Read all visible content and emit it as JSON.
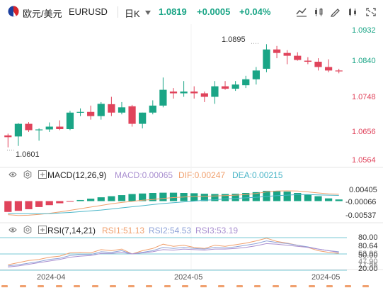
{
  "header": {
    "title": "欧元/美元",
    "symbol": "EURUSD",
    "period": "日K",
    "price": "1.0819",
    "change": "+0.0005",
    "change_pct": "+0.04%",
    "icons": [
      "line-chart-icon",
      "candle-style-icon",
      "pencil-icon",
      "compare-icon",
      "fullscreen-icon"
    ]
  },
  "main_axis": [
    "1.0932",
    "1.0840",
    "1.0748",
    "1.0656",
    "1.0564"
  ],
  "main_axis_colors": [
    "#1aa586",
    "#1aa586",
    "#e0435b",
    "#e0435b",
    "#e0435b"
  ],
  "high_label": "1.0895",
  "low_label": "1.0601",
  "macd": {
    "name": "MACD(12,26,9)",
    "macd_label": "MACD:0.00065",
    "dif_label": "DIF:0.00247",
    "dea_label": "DEA:0.00215",
    "axis": [
      "0.00405",
      "-0.00066",
      "-0.00537"
    ]
  },
  "rsi": {
    "name": "RSI(7,14,21)",
    "rsi1_label": "RSI1:51.13",
    "rsi2_label": "RSI2:54.53",
    "rsi3_label": "RSI3:53.19",
    "axis": [
      "80.00",
      "80.64",
      "53.96",
      "50.00",
      "47.90",
      "20.00",
      "17.96"
    ]
  },
  "x_axis": [
    "2024-04",
    "2024-05",
    "2024-05"
  ],
  "colors": {
    "up": "#1aa586",
    "down": "#e0435b",
    "macd_line": "#f0a06e",
    "dea_line": "#4cb6c8",
    "rsi1": "#f0a06e",
    "rsi2": "#8fa3d8",
    "rsi3": "#a98fd0"
  },
  "chart_data": {
    "type": "candlestick",
    "candles": [
      [
        1.0635,
        1.064,
        1.0601,
        1.063
      ],
      [
        1.0632,
        1.067,
        1.0605,
        1.0668
      ],
      [
        1.0668,
        1.0673,
        1.0645,
        1.065
      ],
      [
        1.065,
        1.0655,
        1.062,
        1.0652
      ],
      [
        1.0652,
        1.0672,
        1.0645,
        1.066
      ],
      [
        1.066,
        1.0678,
        1.065,
        1.0653
      ],
      [
        1.0653,
        1.0705,
        1.065,
        1.07
      ],
      [
        1.07,
        1.0712,
        1.069,
        1.0702
      ],
      [
        1.0702,
        1.072,
        1.068,
        1.069
      ],
      [
        1.069,
        1.073,
        1.068,
        1.0725
      ],
      [
        1.0724,
        1.0745,
        1.069,
        1.07
      ],
      [
        1.07,
        1.073,
        1.0695,
        1.0715
      ],
      [
        1.0718,
        1.0722,
        1.066,
        1.0668
      ],
      [
        1.0668,
        1.07,
        1.0655,
        1.07
      ],
      [
        1.07,
        1.0735,
        1.0695,
        1.072
      ],
      [
        1.072,
        1.08,
        1.0715,
        1.0765
      ],
      [
        1.076,
        1.077,
        1.074,
        1.0755
      ],
      [
        1.0755,
        1.079,
        1.0745,
        1.076
      ],
      [
        1.076,
        1.0775,
        1.074,
        1.0755
      ],
      [
        1.0755,
        1.076,
        1.073,
        1.0745
      ],
      [
        1.0745,
        1.079,
        1.0725,
        1.0775
      ],
      [
        1.0775,
        1.079,
        1.0765,
        1.0768
      ],
      [
        1.0768,
        1.079,
        1.0762,
        1.078
      ],
      [
        1.0778,
        1.0805,
        1.077,
        1.0795
      ],
      [
        1.0795,
        1.083,
        1.078,
        1.082
      ],
      [
        1.0825,
        1.0895,
        1.0815,
        1.088
      ],
      [
        1.088,
        1.089,
        1.0855,
        1.087
      ],
      [
        1.087,
        1.0878,
        1.0838,
        1.0862
      ],
      [
        1.0862,
        1.0872,
        1.0848,
        1.085
      ],
      [
        1.0848,
        1.0858,
        1.0838,
        1.0845
      ],
      [
        1.0845,
        1.0855,
        1.082,
        1.083
      ],
      [
        1.083,
        1.0852,
        1.0815,
        1.082
      ],
      [
        1.082,
        1.0825,
        1.0812,
        1.0819
      ]
    ],
    "macd_hist": [
      -0.004,
      -0.0036,
      -0.003,
      -0.0022,
      -0.0015,
      -0.0008,
      -0.0002,
      0.0004,
      0.0009,
      0.0014,
      0.0018,
      0.0022,
      0.0026,
      0.0028,
      0.003,
      0.0031,
      0.0031,
      0.003,
      0.0029,
      0.0027,
      0.0026,
      0.0026,
      0.0027,
      0.003,
      0.0033,
      0.0038,
      0.0038,
      0.0035,
      0.003,
      0.0024,
      0.0018,
      0.001,
      0.0006
    ],
    "dif": [
      -0.005,
      -0.0053,
      -0.0052,
      -0.0049,
      -0.0045,
      -0.004,
      -0.0034,
      -0.0028,
      -0.0022,
      -0.0016,
      -0.001,
      -0.0005,
      -0.0001,
      0.0003,
      0.0006,
      0.001,
      0.0013,
      0.0015,
      0.0017,
      0.0018,
      0.0019,
      0.002,
      0.0022,
      0.0024,
      0.0028,
      0.0034,
      0.0037,
      0.0038,
      0.0037,
      0.0034,
      0.003,
      0.0027,
      0.0025
    ],
    "dea": [
      -0.0045,
      -0.0046,
      -0.0047,
      -0.0047,
      -0.0046,
      -0.0044,
      -0.0042,
      -0.0039,
      -0.0036,
      -0.0033,
      -0.0029,
      -0.0025,
      -0.0021,
      -0.0017,
      -0.0013,
      -0.0009,
      -0.0006,
      -0.0003,
      0.0,
      0.0003,
      0.0005,
      0.0008,
      0.001,
      0.0012,
      0.0014,
      0.0017,
      0.002,
      0.0022,
      0.0024,
      0.0024,
      0.0023,
      0.0022,
      0.0021
    ],
    "rsi1": [
      30,
      34,
      38,
      40,
      44,
      46,
      52,
      53,
      52,
      58,
      56,
      59,
      50,
      56,
      60,
      68,
      64,
      66,
      62,
      60,
      66,
      64,
      67,
      70,
      74,
      79,
      73,
      70,
      66,
      62,
      56,
      53,
      51
    ],
    "rsi2": [
      28,
      30,
      33,
      36,
      40,
      42,
      47,
      49,
      49,
      54,
      53,
      56,
      50,
      53,
      56,
      62,
      60,
      62,
      60,
      59,
      62,
      61,
      63,
      66,
      69,
      74,
      71,
      69,
      66,
      63,
      59,
      56,
      54
    ],
    "rsi3": [
      26,
      28,
      31,
      34,
      37,
      40,
      44,
      46,
      47,
      51,
      51,
      53,
      50,
      52,
      54,
      58,
      57,
      59,
      58,
      57,
      59,
      59,
      60,
      62,
      65,
      69,
      68,
      66,
      64,
      62,
      59,
      56,
      53
    ]
  }
}
